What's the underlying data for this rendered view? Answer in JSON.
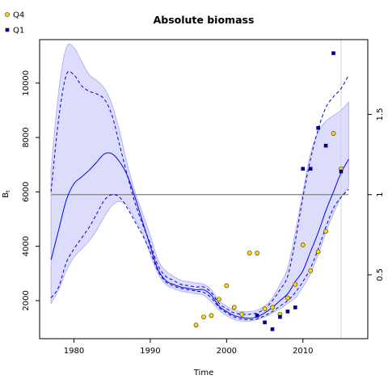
{
  "chart_data": {
    "type": "line",
    "title": "Absolute biomass",
    "xlabel": "Time",
    "ylabel": "B",
    "ylabel_subscript": "t",
    "xlim": [
      1975.5,
      2018.5
    ],
    "ylim": [
      600,
      11600
    ],
    "x_ticks": [
      1980,
      1990,
      2000,
      2010
    ],
    "y_ticks": [
      2000,
      4000,
      6000,
      8000,
      10000
    ],
    "y2_ticks": [
      0.5,
      1,
      1.5
    ],
    "y2_tick_labels": [
      "0.5",
      "1",
      "1.5"
    ],
    "y2_reference_value": 5900,
    "vertical_line_x": 2015,
    "grid": false,
    "legend": {
      "placement": "top-left",
      "entries": [
        {
          "label": "Q4",
          "marker": "circle",
          "fill": "#FFD700",
          "stroke": "#333333"
        },
        {
          "label": "Q1",
          "marker": "square",
          "fill": "#00008B",
          "stroke": "#00008B"
        }
      ]
    },
    "colors": {
      "band_fill": "#DCDCFC",
      "band_edge": "#B4B4F0",
      "estimate_line": "#0000FF",
      "ci_line": "#0000CD",
      "reference_line": "#808080",
      "vertical_line": "#D3D3D3"
    },
    "series": [
      {
        "name": "estimate",
        "x": [
          1977,
          1978,
          1979,
          1980,
          1981,
          1982,
          1983,
          1984,
          1985,
          1986,
          1987,
          1988,
          1989,
          1990,
          1991,
          1992,
          1993,
          1994,
          1995,
          1996,
          1997,
          1998,
          1999,
          2000,
          2001,
          2002,
          2003,
          2004,
          2005,
          2006,
          2007,
          2008,
          2009,
          2010,
          2011,
          2012,
          2013,
          2014,
          2015,
          2016
        ],
        "y": [
          3500,
          4600,
          5700,
          6300,
          6550,
          6800,
          7100,
          7400,
          7400,
          7100,
          6600,
          5800,
          4900,
          4000,
          3150,
          2750,
          2600,
          2500,
          2450,
          2400,
          2400,
          2200,
          1800,
          1600,
          1450,
          1380,
          1350,
          1400,
          1550,
          1750,
          2000,
          2250,
          2700,
          3100,
          3800,
          4500,
          5300,
          6000,
          6700,
          7200
        ]
      },
      {
        "name": "upper_ci",
        "x": [
          1977,
          1978,
          1979,
          1980,
          1981,
          1982,
          1983,
          1984,
          1985,
          1986,
          1987,
          1988,
          1989,
          1990,
          1991,
          1992,
          1993,
          1994,
          1995,
          1996,
          1997,
          1998,
          1999,
          2000,
          2001,
          2002,
          2003,
          2004,
          2005,
          2006,
          2007,
          2008,
          2009,
          2010,
          2011,
          2012,
          2013,
          2014,
          2015,
          2016
        ],
        "y": [
          6000,
          8700,
          10300,
          10300,
          9900,
          9700,
          9600,
          9400,
          8800,
          7700,
          6600,
          5600,
          4800,
          4100,
          3300,
          2900,
          2750,
          2600,
          2550,
          2500,
          2500,
          2300,
          1900,
          1700,
          1550,
          1500,
          1500,
          1550,
          1700,
          2000,
          2400,
          2900,
          4200,
          5800,
          7200,
          8300,
          9100,
          9500,
          9800,
          10300
        ]
      },
      {
        "name": "lower_ci",
        "x": [
          1977,
          1978,
          1979,
          1980,
          1981,
          1982,
          1983,
          1984,
          1985,
          1986,
          1987,
          1988,
          1989,
          1990,
          1991,
          1992,
          1993,
          1994,
          1995,
          1996,
          1997,
          1998,
          1999,
          2000,
          2001,
          2002,
          2003,
          2004,
          2005,
          2006,
          2007,
          2008,
          2009,
          2010,
          2011,
          2012,
          2013,
          2014,
          2015,
          2016
        ],
        "y": [
          2100,
          2500,
          3400,
          3900,
          4300,
          4700,
          5200,
          5700,
          5900,
          5800,
          5400,
          4900,
          4400,
          3800,
          3100,
          2700,
          2550,
          2450,
          2400,
          2350,
          2300,
          2100,
          1750,
          1550,
          1400,
          1320,
          1300,
          1330,
          1450,
          1600,
          1800,
          2000,
          2300,
          2700,
          3200,
          3900,
          4700,
          5400,
          5800,
          6100
        ]
      },
      {
        "name": "band_upper",
        "x": [
          1977,
          1978,
          1979,
          1980,
          1981,
          1982,
          1983,
          1984,
          1985,
          1986,
          1987,
          1988,
          1989,
          1990,
          1991,
          1992,
          1993,
          1994,
          1995,
          1996,
          1997,
          1998,
          1999,
          2000,
          2001,
          2002,
          2003,
          2004,
          2005,
          2006,
          2007,
          2008,
          2009,
          2010,
          2011,
          2012,
          2013,
          2014,
          2015,
          2016
        ],
        "y": [
          6800,
          9700,
          11300,
          11300,
          10800,
          10300,
          10100,
          9800,
          9200,
          8200,
          7000,
          6000,
          5200,
          4400,
          3500,
          3100,
          2900,
          2750,
          2700,
          2650,
          2600,
          2400,
          2000,
          1800,
          1650,
          1600,
          1600,
          1650,
          1800,
          2100,
          2600,
          3200,
          4500,
          6000,
          7400,
          8200,
          8600,
          8800,
          9000,
          9300
        ]
      },
      {
        "name": "band_lower",
        "x": [
          1977,
          1978,
          1979,
          1980,
          1981,
          1982,
          1983,
          1984,
          1985,
          1986,
          1987,
          1988,
          1989,
          1990,
          1991,
          1992,
          1993,
          1994,
          1995,
          1996,
          1997,
          1998,
          1999,
          2000,
          2001,
          2002,
          2003,
          2004,
          2005,
          2006,
          2007,
          2008,
          2009,
          2010,
          2011,
          2012,
          2013,
          2014,
          2015,
          2016
        ],
        "y": [
          1900,
          2400,
          3100,
          3600,
          3900,
          4200,
          4600,
          5100,
          5500,
          5650,
          5500,
          5000,
          4500,
          3700,
          3000,
          2600,
          2450,
          2350,
          2300,
          2250,
          2200,
          1950,
          1650,
          1450,
          1300,
          1250,
          1250,
          1300,
          1400,
          1550,
          1700,
          1900,
          2100,
          2500,
          3000,
          3700,
          4500,
          5200,
          5800,
          6200
        ]
      },
      {
        "name": "Q4",
        "x": [
          1996,
          1997,
          1998,
          1999,
          2000,
          2001,
          2002,
          2003,
          2004,
          2005,
          2006,
          2007,
          2008,
          2009,
          2010,
          2011,
          2012,
          2013,
          2014,
          2015
        ],
        "y": [
          1100,
          1400,
          1450,
          2050,
          2550,
          1750,
          1500,
          3750,
          3750,
          1700,
          1750,
          1500,
          2100,
          2600,
          4050,
          3100,
          3800,
          4550,
          8150,
          6850
        ]
      },
      {
        "name": "Q1",
        "x": [
          2004,
          2005,
          2006,
          2007,
          2008,
          2009,
          2010,
          2011,
          2012,
          2013,
          2014,
          2015
        ],
        "y": [
          1450,
          1200,
          950,
          1400,
          1600,
          1750,
          6850,
          6850,
          8350,
          7700,
          11100,
          6750
        ]
      }
    ]
  }
}
